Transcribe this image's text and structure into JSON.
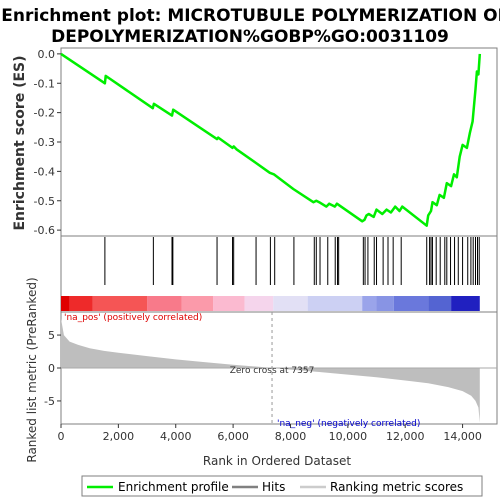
{
  "title_line1": "Enrichment plot: MICROTUBULE POLYMERIZATION OR",
  "title_line2": "DEPOLYMERIZATION%GOBP%GO:0031109",
  "colors": {
    "es_line": "#00ee00",
    "hit_line": "#000000",
    "metric_fill": "#bebebe",
    "pos_label": "#dd0000",
    "neg_label": "#0000cc",
    "zero_line": "#aaaaaa"
  },
  "chart_data": [
    {
      "type": "line",
      "name": "enrichment-score",
      "ylabel": "Enrichment score (ES)",
      "xlim": [
        0,
        15200
      ],
      "ylim": [
        -0.62,
        0.02
      ],
      "yticks": [
        0.0,
        -0.1,
        -0.2,
        -0.3,
        -0.4,
        -0.5,
        -0.6
      ],
      "ytick_labels": [
        "0.0",
        "-0.1",
        "-0.2",
        "-0.3",
        "-0.4",
        "-0.5",
        "-0.6"
      ],
      "x": [
        0,
        1530,
        1560,
        3200,
        3240,
        3870,
        3910,
        5440,
        5480,
        5980,
        6020,
        6120,
        6780,
        7280,
        7420,
        8100,
        8800,
        8900,
        9000,
        9250,
        9350,
        9550,
        9620,
        10500,
        10580,
        10650,
        10730,
        10900,
        11000,
        11200,
        11350,
        11500,
        11650,
        11800,
        11900,
        12750,
        12800,
        12900,
        12950,
        13100,
        13200,
        13350,
        13450,
        13600,
        13700,
        13800,
        13900,
        14000,
        14150,
        14250,
        14350,
        14450,
        14500,
        14550,
        14600
      ],
      "y": [
        0.0,
        -0.1,
        -0.075,
        -0.185,
        -0.17,
        -0.21,
        -0.19,
        -0.29,
        -0.285,
        -0.32,
        -0.315,
        -0.325,
        -0.37,
        -0.405,
        -0.41,
        -0.46,
        -0.505,
        -0.5,
        -0.505,
        -0.52,
        -0.51,
        -0.52,
        -0.51,
        -0.57,
        -0.565,
        -0.55,
        -0.545,
        -0.555,
        -0.53,
        -0.545,
        -0.53,
        -0.54,
        -0.52,
        -0.535,
        -0.52,
        -0.585,
        -0.55,
        -0.535,
        -0.505,
        -0.515,
        -0.48,
        -0.49,
        -0.44,
        -0.45,
        -0.41,
        -0.42,
        -0.35,
        -0.31,
        -0.32,
        -0.27,
        -0.23,
        -0.12,
        -0.06,
        -0.07,
        0.0
      ]
    },
    {
      "type": "hits",
      "name": "hits",
      "x": [
        1530,
        3220,
        3870,
        3900,
        5440,
        5980,
        6020,
        6800,
        7300,
        7450,
        8120,
        8830,
        8900,
        9030,
        9300,
        9560,
        9640,
        9680,
        10540,
        10600,
        10700,
        10920,
        11000,
        11230,
        11400,
        11580,
        11860,
        12750,
        12850,
        12900,
        12950,
        13080,
        13220,
        13380,
        13450,
        13580,
        13720,
        13850,
        14000,
        14180,
        14290,
        14370,
        14450,
        14520,
        14580
      ]
    },
    {
      "type": "area",
      "name": "ranked-list-metric",
      "ylabel": "Ranked list metric (PreRanked)",
      "xlabel": "Rank in Ordered Dataset",
      "xlim": [
        0,
        15200
      ],
      "ylim": [
        -8.5,
        8.5
      ],
      "yticks": [
        5,
        0,
        -5
      ],
      "ytick_labels": [
        "5",
        "0",
        "-5"
      ],
      "xticks": [
        0,
        2000,
        4000,
        6000,
        8000,
        10000,
        12000,
        14000
      ],
      "xtick_labels": [
        "0",
        "2,000",
        "4,000",
        "6,000",
        "8,000",
        "10,000",
        "12,000",
        "14,000"
      ],
      "x": [
        0,
        100,
        300,
        600,
        1000,
        1500,
        2000,
        3000,
        4000,
        5000,
        6000,
        7000,
        7357,
        8000,
        9000,
        10000,
        11000,
        12000,
        12800,
        13500,
        14000,
        14300,
        14450,
        14550,
        14600
      ],
      "y": [
        7.5,
        5.0,
        4.0,
        3.5,
        3.0,
        2.6,
        2.3,
        1.8,
        1.3,
        0.9,
        0.5,
        0.15,
        0.0,
        -0.25,
        -0.6,
        -1.0,
        -1.4,
        -1.9,
        -2.3,
        -2.9,
        -3.5,
        -4.2,
        -5.0,
        -6.0,
        -8.3
      ],
      "zero_cross_label": "Zero cross at 7357",
      "pos_label": "'na_pos' (positively correlated)",
      "neg_label": "'na_neg' (negatively correlated)",
      "zero_cross_x": 7357
    }
  ],
  "legend": {
    "items": [
      {
        "label": "Enrichment profile"
      },
      {
        "label": "Hits"
      },
      {
        "label": "Ranking metric scores"
      }
    ]
  }
}
